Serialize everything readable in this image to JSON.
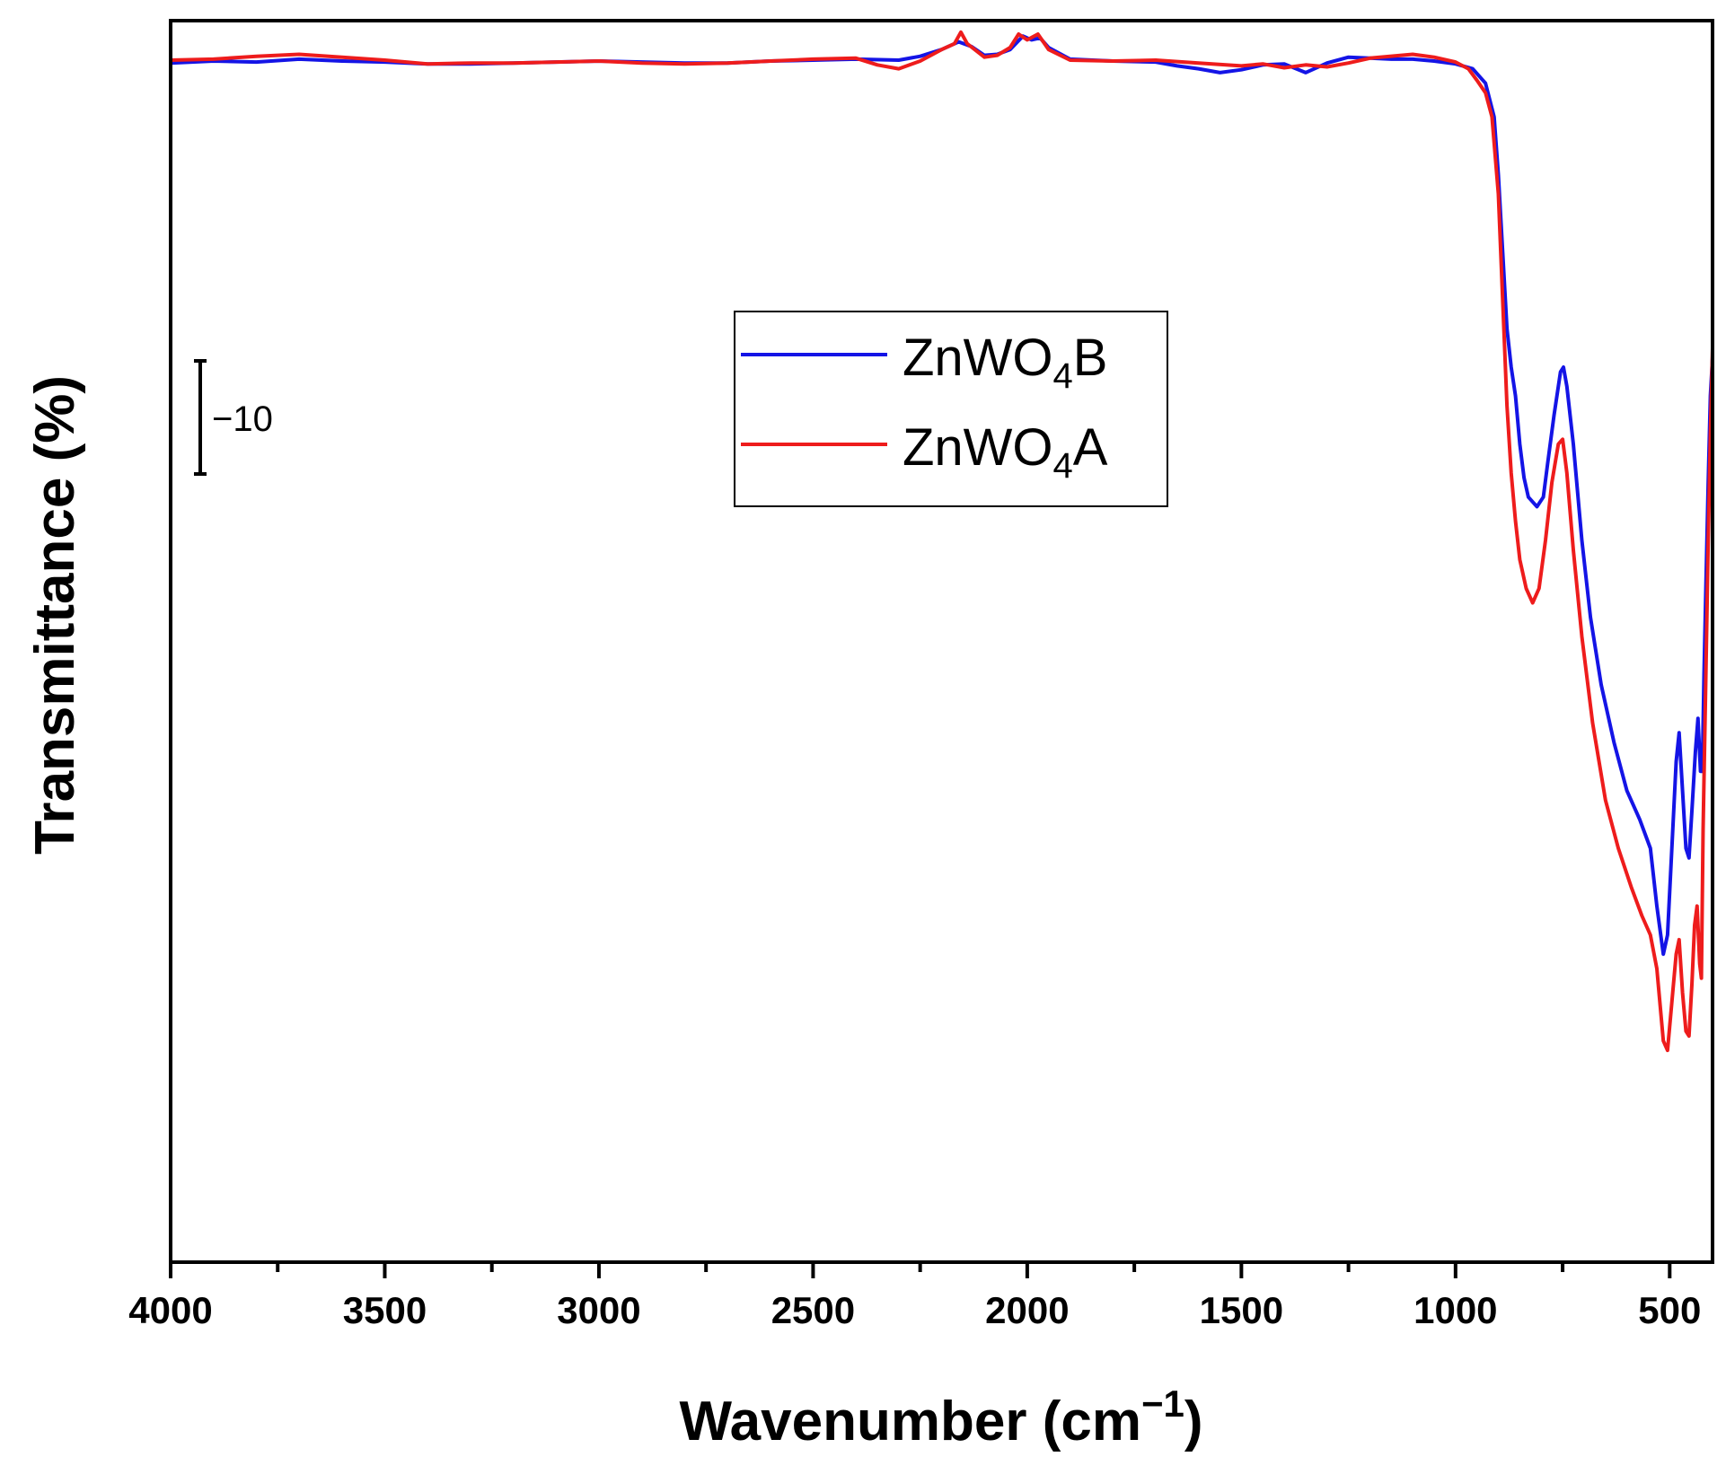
{
  "chart_data": {
    "type": "line",
    "title": "",
    "xlabel": "Wavenumber (cm",
    "xlabel_sup": "−1",
    "xlabel_end": ")",
    "ylabel": "Transmittance (%)",
    "xlim": [
      4000,
      400
    ],
    "ylim": [
      -25,
      104
    ],
    "x_ticks": [
      4000,
      3500,
      3000,
      2500,
      2000,
      1500,
      1000,
      500
    ],
    "x_tick_labels": [
      "4000",
      "3500",
      "3000",
      "2500",
      "2000",
      "1500",
      "1000",
      "500"
    ],
    "x_minor_ticks": [
      3750,
      3250,
      2750,
      2250,
      1750,
      1250,
      750
    ],
    "scale_bar": {
      "label": "−10",
      "length": 10
    },
    "legend_position": "upper-center",
    "series": [
      {
        "name_base": "ZnWO",
        "name_sub": "4",
        "name_tail": "B",
        "color": "#1414e6",
        "points": [
          [
            4000,
            99.6
          ],
          [
            3900,
            99.8
          ],
          [
            3800,
            99.7
          ],
          [
            3700,
            100.0
          ],
          [
            3600,
            99.8
          ],
          [
            3500,
            99.7
          ],
          [
            3400,
            99.5
          ],
          [
            3300,
            99.5
          ],
          [
            3200,
            99.6
          ],
          [
            3100,
            99.7
          ],
          [
            3000,
            99.8
          ],
          [
            2900,
            99.7
          ],
          [
            2800,
            99.6
          ],
          [
            2700,
            99.6
          ],
          [
            2600,
            99.8
          ],
          [
            2500,
            99.9
          ],
          [
            2400,
            100.0
          ],
          [
            2300,
            99.9
          ],
          [
            2250,
            100.3
          ],
          [
            2200,
            101.0
          ],
          [
            2160,
            101.8
          ],
          [
            2130,
            101.3
          ],
          [
            2100,
            100.4
          ],
          [
            2070,
            100.5
          ],
          [
            2040,
            101.0
          ],
          [
            2010,
            102.4
          ],
          [
            1990,
            102.0
          ],
          [
            1970,
            102.2
          ],
          [
            1950,
            101.2
          ],
          [
            1900,
            100.0
          ],
          [
            1800,
            99.8
          ],
          [
            1700,
            99.7
          ],
          [
            1650,
            99.3
          ],
          [
            1600,
            99.0
          ],
          [
            1550,
            98.6
          ],
          [
            1500,
            98.9
          ],
          [
            1450,
            99.4
          ],
          [
            1400,
            99.5
          ],
          [
            1350,
            98.6
          ],
          [
            1300,
            99.6
          ],
          [
            1250,
            100.2
          ],
          [
            1200,
            100.1
          ],
          [
            1150,
            100.0
          ],
          [
            1100,
            100.0
          ],
          [
            1050,
            99.8
          ],
          [
            1000,
            99.5
          ],
          [
            960,
            99.0
          ],
          [
            930,
            97.5
          ],
          [
            910,
            94.0
          ],
          [
            900,
            88.0
          ],
          [
            890,
            80.0
          ],
          [
            880,
            72.0
          ],
          [
            870,
            68.0
          ],
          [
            860,
            65.0
          ],
          [
            850,
            60.0
          ],
          [
            840,
            56.5
          ],
          [
            830,
            54.5
          ],
          [
            810,
            53.5
          ],
          [
            795,
            54.5
          ],
          [
            785,
            58.0
          ],
          [
            770,
            63.0
          ],
          [
            755,
            67.5
          ],
          [
            748,
            68.0
          ],
          [
            740,
            66.0
          ],
          [
            725,
            60.0
          ],
          [
            705,
            50.0
          ],
          [
            685,
            42.0
          ],
          [
            660,
            35.0
          ],
          [
            630,
            29.0
          ],
          [
            600,
            24.0
          ],
          [
            570,
            21.0
          ],
          [
            545,
            18.0
          ],
          [
            530,
            12.0
          ],
          [
            515,
            7.0
          ],
          [
            505,
            9.0
          ],
          [
            495,
            18.0
          ],
          [
            485,
            27.0
          ],
          [
            478,
            30.0
          ],
          [
            470,
            24.0
          ],
          [
            462,
            18.0
          ],
          [
            455,
            17.0
          ],
          [
            448,
            22.0
          ],
          [
            440,
            28.0
          ],
          [
            434,
            31.5
          ],
          [
            428,
            26.0
          ],
          [
            424,
            26.0
          ],
          [
            420,
            36.0
          ],
          [
            415,
            46.0
          ],
          [
            410,
            56.0
          ],
          [
            405,
            65.0
          ],
          [
            400,
            69.0
          ]
        ]
      },
      {
        "name_base": "ZnWO",
        "name_sub": "4",
        "name_tail": "A",
        "color": "#ee1c1c",
        "points": [
          [
            4000,
            99.9
          ],
          [
            3900,
            100.0
          ],
          [
            3800,
            100.3
          ],
          [
            3700,
            100.5
          ],
          [
            3600,
            100.2
          ],
          [
            3500,
            99.9
          ],
          [
            3400,
            99.5
          ],
          [
            3300,
            99.6
          ],
          [
            3200,
            99.6
          ],
          [
            3100,
            99.7
          ],
          [
            3000,
            99.8
          ],
          [
            2900,
            99.6
          ],
          [
            2800,
            99.5
          ],
          [
            2700,
            99.6
          ],
          [
            2600,
            99.8
          ],
          [
            2500,
            100.0
          ],
          [
            2400,
            100.1
          ],
          [
            2350,
            99.4
          ],
          [
            2300,
            99.0
          ],
          [
            2250,
            99.8
          ],
          [
            2200,
            101.0
          ],
          [
            2170,
            101.6
          ],
          [
            2155,
            102.8
          ],
          [
            2140,
            101.6
          ],
          [
            2100,
            100.2
          ],
          [
            2070,
            100.4
          ],
          [
            2040,
            101.2
          ],
          [
            2020,
            102.6
          ],
          [
            2000,
            102.0
          ],
          [
            1975,
            102.6
          ],
          [
            1950,
            101.0
          ],
          [
            1900,
            99.9
          ],
          [
            1800,
            99.8
          ],
          [
            1700,
            99.9
          ],
          [
            1600,
            99.6
          ],
          [
            1500,
            99.3
          ],
          [
            1450,
            99.5
          ],
          [
            1400,
            99.1
          ],
          [
            1350,
            99.4
          ],
          [
            1300,
            99.2
          ],
          [
            1250,
            99.6
          ],
          [
            1200,
            100.1
          ],
          [
            1100,
            100.5
          ],
          [
            1050,
            100.2
          ],
          [
            1000,
            99.7
          ],
          [
            970,
            99.0
          ],
          [
            950,
            97.8
          ],
          [
            930,
            96.5
          ],
          [
            915,
            94.0
          ],
          [
            900,
            86.0
          ],
          [
            890,
            75.0
          ],
          [
            880,
            64.0
          ],
          [
            870,
            57.0
          ],
          [
            860,
            52.0
          ],
          [
            850,
            48.0
          ],
          [
            835,
            45.0
          ],
          [
            820,
            43.5
          ],
          [
            805,
            45.0
          ],
          [
            790,
            50.0
          ],
          [
            775,
            56.0
          ],
          [
            760,
            60.0
          ],
          [
            750,
            60.5
          ],
          [
            740,
            57.0
          ],
          [
            725,
            49.0
          ],
          [
            705,
            40.0
          ],
          [
            680,
            31.0
          ],
          [
            650,
            23.0
          ],
          [
            620,
            18.0
          ],
          [
            590,
            14.0
          ],
          [
            565,
            11.0
          ],
          [
            545,
            9.0
          ],
          [
            530,
            5.5
          ],
          [
            515,
            -2.0
          ],
          [
            505,
            -3.0
          ],
          [
            495,
            2.0
          ],
          [
            485,
            7.0
          ],
          [
            478,
            8.5
          ],
          [
            470,
            3.0
          ],
          [
            462,
            -1.0
          ],
          [
            455,
            -1.5
          ],
          [
            448,
            4.0
          ],
          [
            442,
            10.0
          ],
          [
            436,
            12.0
          ],
          [
            430,
            6.0
          ],
          [
            426,
            4.5
          ],
          [
            422,
            20.0
          ],
          [
            416,
            35.0
          ],
          [
            410,
            50.0
          ],
          [
            405,
            61.0
          ],
          [
            400,
            70.0
          ]
        ]
      }
    ]
  }
}
